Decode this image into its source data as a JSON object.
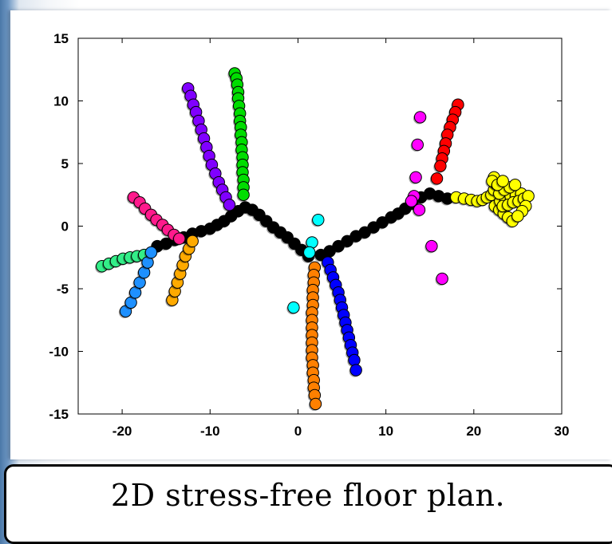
{
  "caption": "2D stress-free floor plan.",
  "chart_data": {
    "type": "scatter",
    "title": "",
    "xlabel": "",
    "ylabel": "",
    "xlim": [
      -25,
      30
    ],
    "ylim": [
      -15,
      15
    ],
    "xticks": [
      -20,
      -10,
      0,
      10,
      20,
      30
    ],
    "yticks": [
      15,
      10,
      5,
      0,
      -5,
      -10,
      -15
    ],
    "grid": false,
    "series": [
      {
        "color": "#000000",
        "points": [
          [
            -16,
            -1.6
          ],
          [
            -15,
            -1.4
          ],
          [
            -14,
            -1.1
          ],
          [
            -13,
            -0.9
          ],
          [
            -12,
            -0.6
          ],
          [
            -11,
            -0.4
          ],
          [
            -10,
            -0.2
          ],
          [
            -9.2,
            0.1
          ],
          [
            -8.4,
            0.4
          ],
          [
            -7.6,
            0.8
          ],
          [
            -6.8,
            1.2
          ],
          [
            -6,
            1.5
          ],
          [
            -5.2,
            1.3
          ],
          [
            -4.4,
            0.9
          ],
          [
            -3.6,
            0.4
          ],
          [
            -2.8,
            -0.1
          ],
          [
            -2,
            -0.5
          ],
          [
            -1.2,
            -0.9
          ],
          [
            -0.4,
            -1.4
          ],
          [
            0.4,
            -1.9
          ],
          [
            1.2,
            -2.4
          ],
          [
            2.6,
            -2.3
          ],
          [
            3.6,
            -2
          ],
          [
            4.6,
            -1.6
          ],
          [
            5.6,
            -1.2
          ],
          [
            6.6,
            -0.8
          ],
          [
            7.6,
            -0.5
          ],
          [
            8.6,
            -0.1
          ],
          [
            9.6,
            0.3
          ],
          [
            10.6,
            0.7
          ],
          [
            11.4,
            1
          ],
          [
            12.2,
            1.4
          ],
          [
            13,
            1.8
          ],
          [
            14,
            2.3
          ],
          [
            15,
            2.6
          ],
          [
            16,
            2.4
          ],
          [
            17,
            2.2
          ]
        ]
      },
      {
        "color": "#00dd00",
        "points": [
          [
            -7.2,
            12.2
          ],
          [
            -7,
            11.8
          ],
          [
            -6.9,
            11.3
          ],
          [
            -6.8,
            10.7
          ],
          [
            -6.8,
            10.2
          ],
          [
            -6.7,
            9.6
          ],
          [
            -6.6,
            9
          ],
          [
            -6.6,
            8.4
          ],
          [
            -6.5,
            7.9
          ],
          [
            -6.5,
            7.3
          ],
          [
            -6.4,
            6.7
          ],
          [
            -6.4,
            6.1
          ],
          [
            -6.3,
            5.5
          ],
          [
            -6.3,
            4.9
          ],
          [
            -6.3,
            4.3
          ],
          [
            -6.2,
            3.7
          ],
          [
            -6.2,
            3.1
          ],
          [
            -6.2,
            2.5
          ]
        ]
      },
      {
        "color": "#8000ff",
        "points": [
          [
            -12.5,
            11
          ],
          [
            -12.2,
            10.4
          ],
          [
            -11.9,
            9.7
          ],
          [
            -11.6,
            9.1
          ],
          [
            -11.3,
            8.4
          ],
          [
            -11,
            7.7
          ],
          [
            -10.7,
            7
          ],
          [
            -10.4,
            6.3
          ],
          [
            -10.1,
            5.6
          ],
          [
            -9.8,
            4.9
          ],
          [
            -9.4,
            4.2
          ],
          [
            -9,
            3.5
          ],
          [
            -8.6,
            2.9
          ],
          [
            -8.2,
            2.3
          ],
          [
            -7.8,
            1.7
          ]
        ]
      },
      {
        "color": "#ff1a8c",
        "points": [
          [
            -18.7,
            2.3
          ],
          [
            -18,
            1.9
          ],
          [
            -17.4,
            1.4
          ],
          [
            -16.7,
            0.9
          ],
          [
            -16.1,
            0.5
          ],
          [
            -15.4,
            0.1
          ],
          [
            -14.8,
            -0.3
          ],
          [
            -14.1,
            -0.7
          ],
          [
            -13.5,
            -1
          ]
        ]
      },
      {
        "color": "#33ee88",
        "points": [
          [
            -22.3,
            -3.2
          ],
          [
            -21.5,
            -3
          ],
          [
            -20.7,
            -2.8
          ],
          [
            -19.9,
            -2.6
          ],
          [
            -19.1,
            -2.5
          ],
          [
            -18.3,
            -2.4
          ],
          [
            -17.5,
            -2.3
          ]
        ]
      },
      {
        "color": "#1e90ff",
        "points": [
          [
            -19.6,
            -6.8
          ],
          [
            -19,
            -6.1
          ],
          [
            -18.5,
            -5.3
          ],
          [
            -18,
            -4.5
          ],
          [
            -17.5,
            -3.7
          ],
          [
            -17.1,
            -2.9
          ],
          [
            -16.7,
            -2.1
          ]
        ]
      },
      {
        "color": "#ffaa00",
        "points": [
          [
            -14.3,
            -5.9
          ],
          [
            -14,
            -5.2
          ],
          [
            -13.7,
            -4.5
          ],
          [
            -13.4,
            -3.8
          ],
          [
            -13.1,
            -3.1
          ],
          [
            -12.8,
            -2.4
          ],
          [
            -12.4,
            -1.8
          ],
          [
            -12,
            -1.2
          ]
        ]
      },
      {
        "color": "#00ffff",
        "points": [
          [
            2.3,
            0.5
          ],
          [
            1.6,
            -1.3
          ],
          [
            1.3,
            -2.1
          ],
          [
            -0.5,
            -6.5
          ]
        ]
      },
      {
        "color": "#ff8000",
        "points": [
          [
            1.9,
            -3.3
          ],
          [
            1.8,
            -3.9
          ],
          [
            1.8,
            -4.5
          ],
          [
            1.7,
            -5.1
          ],
          [
            1.7,
            -5.7
          ],
          [
            1.7,
            -6.3
          ],
          [
            1.6,
            -6.9
          ],
          [
            1.6,
            -7.5
          ],
          [
            1.6,
            -8.1
          ],
          [
            1.6,
            -8.7
          ],
          [
            1.6,
            -9.3
          ],
          [
            1.6,
            -9.9
          ],
          [
            1.6,
            -10.5
          ],
          [
            1.7,
            -11.1
          ],
          [
            1.7,
            -11.7
          ],
          [
            1.8,
            -12.3
          ],
          [
            1.8,
            -12.9
          ],
          [
            1.9,
            -13.5
          ],
          [
            2,
            -14.2
          ]
        ]
      },
      {
        "color": "#0000ff",
        "points": [
          [
            3.4,
            -2.9
          ],
          [
            3.7,
            -3.5
          ],
          [
            4,
            -4.1
          ],
          [
            4.3,
            -4.7
          ],
          [
            4.6,
            -5.3
          ],
          [
            4.8,
            -5.9
          ],
          [
            5,
            -6.5
          ],
          [
            5.2,
            -7.1
          ],
          [
            5.4,
            -7.7
          ],
          [
            5.6,
            -8.3
          ],
          [
            5.8,
            -8.9
          ],
          [
            6,
            -9.5
          ],
          [
            6.2,
            -10.1
          ],
          [
            6.4,
            -10.7
          ],
          [
            6.6,
            -11.5
          ]
        ]
      },
      {
        "color": "#ff00ff",
        "points": [
          [
            13.9,
            8.7
          ],
          [
            13.6,
            6.5
          ],
          [
            13.4,
            3.9
          ],
          [
            13.2,
            2.4
          ],
          [
            12.9,
            2
          ],
          [
            13.8,
            1.3
          ],
          [
            15.2,
            -1.6
          ],
          [
            16.4,
            -4.2
          ]
        ]
      },
      {
        "color": "#ff0000",
        "points": [
          [
            18.2,
            9.7
          ],
          [
            17.9,
            9.1
          ],
          [
            17.6,
            8.5
          ],
          [
            17.3,
            7.9
          ],
          [
            17,
            7.3
          ],
          [
            16.8,
            6.6
          ],
          [
            16.6,
            6
          ],
          [
            16.4,
            5.4
          ],
          [
            16.2,
            4.8
          ],
          [
            15.8,
            3.8
          ]
        ]
      },
      {
        "color": "#ffff00",
        "points": [
          [
            18,
            2.3
          ],
          [
            18.9,
            2.2
          ],
          [
            19.7,
            2.1
          ],
          [
            20.4,
            2
          ],
          [
            21,
            2.1
          ],
          [
            21.5,
            2.3
          ],
          [
            22,
            2.5
          ],
          [
            22.3,
            2.9
          ],
          [
            22.5,
            3.4
          ],
          [
            22.3,
            3.9
          ],
          [
            22.4,
            1.6
          ],
          [
            22.9,
            1.3
          ],
          [
            23.4,
            1
          ],
          [
            23.9,
            0.7
          ],
          [
            24.4,
            0.4
          ],
          [
            23,
            2
          ],
          [
            23.6,
            2.2
          ],
          [
            24.2,
            2.4
          ],
          [
            24.8,
            2.5
          ],
          [
            25.4,
            2.6
          ],
          [
            23.3,
            1.6
          ],
          [
            23.9,
            1.7
          ],
          [
            24.5,
            1.9
          ],
          [
            25.1,
            2
          ],
          [
            25.7,
            2.2
          ],
          [
            22.9,
            2.6
          ],
          [
            23.5,
            2.9
          ],
          [
            24.1,
            3.1
          ],
          [
            24.7,
            3.3
          ],
          [
            22.1,
            3.6
          ],
          [
            22.7,
            3.3
          ],
          [
            23.3,
            3.6
          ],
          [
            26.2,
            2.4
          ],
          [
            25.9,
            1.6
          ],
          [
            25.5,
            1.2
          ],
          [
            25,
            0.8
          ]
        ]
      }
    ]
  }
}
